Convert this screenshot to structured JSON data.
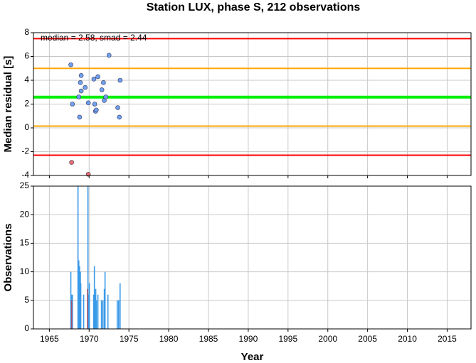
{
  "chart_data": [
    {
      "type": "scatter",
      "title": "Station LUX, phase S, 212 observations",
      "ylabel": "Median residual [s]",
      "annotation": "median = 2.58, smad = 2.44",
      "xlim": [
        1963,
        2018
      ],
      "xticks": [
        1965,
        1970,
        1975,
        1980,
        1985,
        1990,
        1995,
        2000,
        2005,
        2010,
        2015
      ],
      "ylim": [
        -4,
        8
      ],
      "yticks": [
        -4,
        -2,
        0,
        2,
        4,
        6,
        8
      ],
      "grid": true,
      "hlines": [
        {
          "value": 7.5,
          "color": "#ff0000"
        },
        {
          "value": 5.0,
          "color": "#ffa500"
        },
        {
          "value": 2.58,
          "color": "#00ee00"
        },
        {
          "value": 0.15,
          "color": "#ffa500"
        },
        {
          "value": -2.3,
          "color": "#ff0000"
        }
      ],
      "series": [
        {
          "color": "#6fa0f0",
          "x": [
            1967.7,
            1967.9,
            1968.7,
            1968.8,
            1968.9,
            1969.0,
            1969.0,
            1969.5,
            1969.9,
            1970.6,
            1970.7,
            1970.8,
            1970.9,
            1971.1,
            1971.6,
            1971.8,
            1971.9,
            1972.1,
            1972.5,
            1973.6,
            1973.8,
            1973.9
          ],
          "values": [
            5.3,
            2.0,
            2.6,
            0.9,
            3.8,
            4.4,
            3.1,
            3.4,
            2.1,
            4.1,
            2.0,
            1.4,
            1.5,
            4.3,
            3.2,
            3.8,
            2.3,
            2.6,
            6.1,
            1.7,
            0.9,
            4.0
          ]
        },
        {
          "color": "#f07070",
          "x": [
            1967.8,
            1969.9
          ],
          "values": [
            -2.9,
            -3.9
          ]
        }
      ]
    },
    {
      "type": "bar",
      "ylabel": "Observations",
      "xlabel": "Year",
      "xlim": [
        1963,
        2018
      ],
      "xticks": [
        1965,
        1970,
        1975,
        1980,
        1985,
        1990,
        1995,
        2000,
        2005,
        2010,
        2015
      ],
      "ylim": [
        0,
        25
      ],
      "yticks": [
        0,
        5,
        10,
        15,
        20,
        25
      ],
      "grid": true,
      "series": [
        {
          "color": "#3a9ae8",
          "x": [
            1967.7,
            1967.8,
            1967.9,
            1968.6,
            1968.7,
            1968.8,
            1968.9,
            1968.95,
            1969.31,
            1969.85,
            1969.94,
            1970.03,
            1970.57,
            1970.66,
            1970.75,
            1970.83,
            1970.92,
            1971.1,
            1971.55,
            1971.73,
            1971.91,
            1972.0,
            1972.36,
            1973.53,
            1973.71,
            1973.89
          ],
          "values": [
            10,
            6,
            6,
            25,
            12,
            11,
            10,
            8,
            6,
            25,
            6,
            8,
            6,
            11,
            6,
            7,
            5,
            6,
            5,
            5,
            7,
            10,
            6,
            5,
            5,
            8
          ]
        },
        {
          "color": "#a05070",
          "x": [
            1967.8,
            1969.8
          ],
          "values": [
            5,
            7
          ]
        }
      ]
    }
  ]
}
